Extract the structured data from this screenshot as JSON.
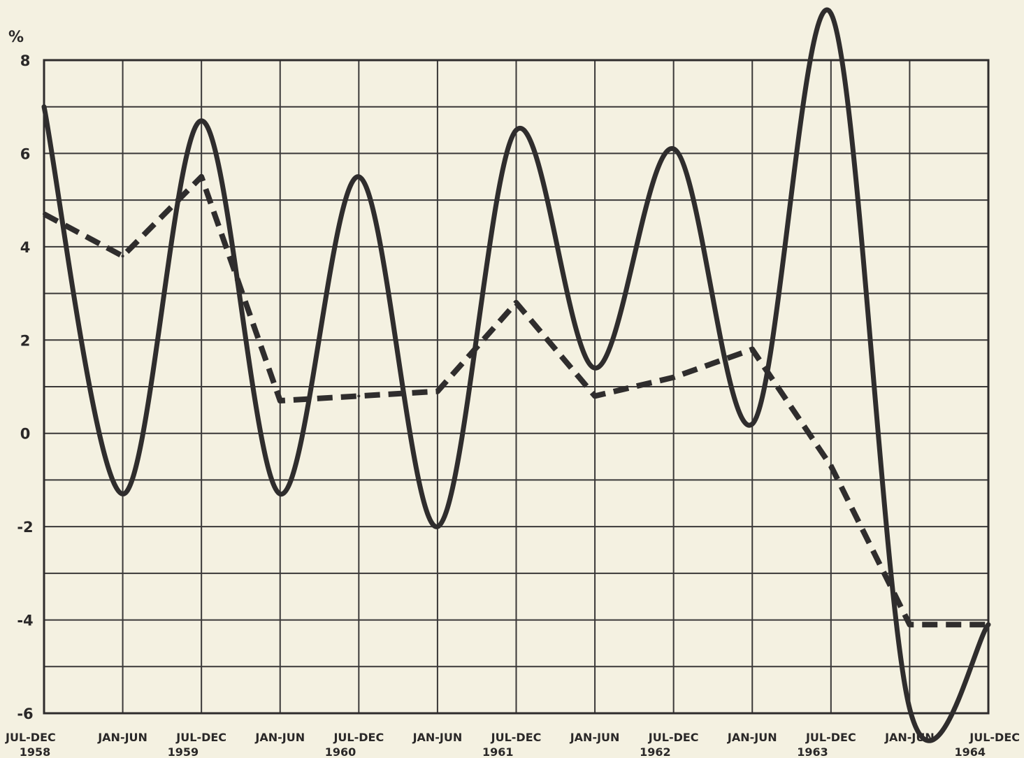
{
  "chart_data": {
    "type": "line",
    "y_unit": "%",
    "x_ticks": [
      {
        "period": "JUL-DEC",
        "year": "1958"
      },
      {
        "period": "JAN-JUN",
        "year": ""
      },
      {
        "period": "JUL-DEC",
        "year": "1959"
      },
      {
        "period": "JAN-JUN",
        "year": ""
      },
      {
        "period": "JUL-DEC",
        "year": "1960"
      },
      {
        "period": "JAN-JUN",
        "year": ""
      },
      {
        "period": "JUL-DEC",
        "year": "1961"
      },
      {
        "period": "JAN-JUN",
        "year": ""
      },
      {
        "period": "JUL-DEC",
        "year": "1962"
      },
      {
        "period": "JAN-JUN",
        "year": ""
      },
      {
        "period": "JUL-DEC",
        "year": "1963"
      },
      {
        "period": "JAN-JUN",
        "year": ""
      },
      {
        "period": "JUL-DEC",
        "year": "1964"
      }
    ],
    "y_ticks": [
      "8",
      "6",
      "4",
      "2",
      "0",
      "-2",
      "-4",
      "-6"
    ],
    "ylim": [
      -6,
      8
    ],
    "grid": true,
    "series": [
      {
        "style": "solid",
        "color": "#2f2d2d",
        "values": [
          7.0,
          -1.3,
          6.7,
          -1.3,
          5.5,
          -2.0,
          6.5,
          1.4,
          6.1,
          0.2,
          9.0,
          -5.9,
          -4.1
        ]
      },
      {
        "style": "dashed",
        "color": "#2f2d2d",
        "values": [
          4.7,
          3.8,
          5.5,
          0.7,
          0.8,
          0.9,
          2.8,
          0.8,
          1.2,
          1.8,
          -0.7,
          -4.1,
          -4.1
        ]
      }
    ]
  }
}
